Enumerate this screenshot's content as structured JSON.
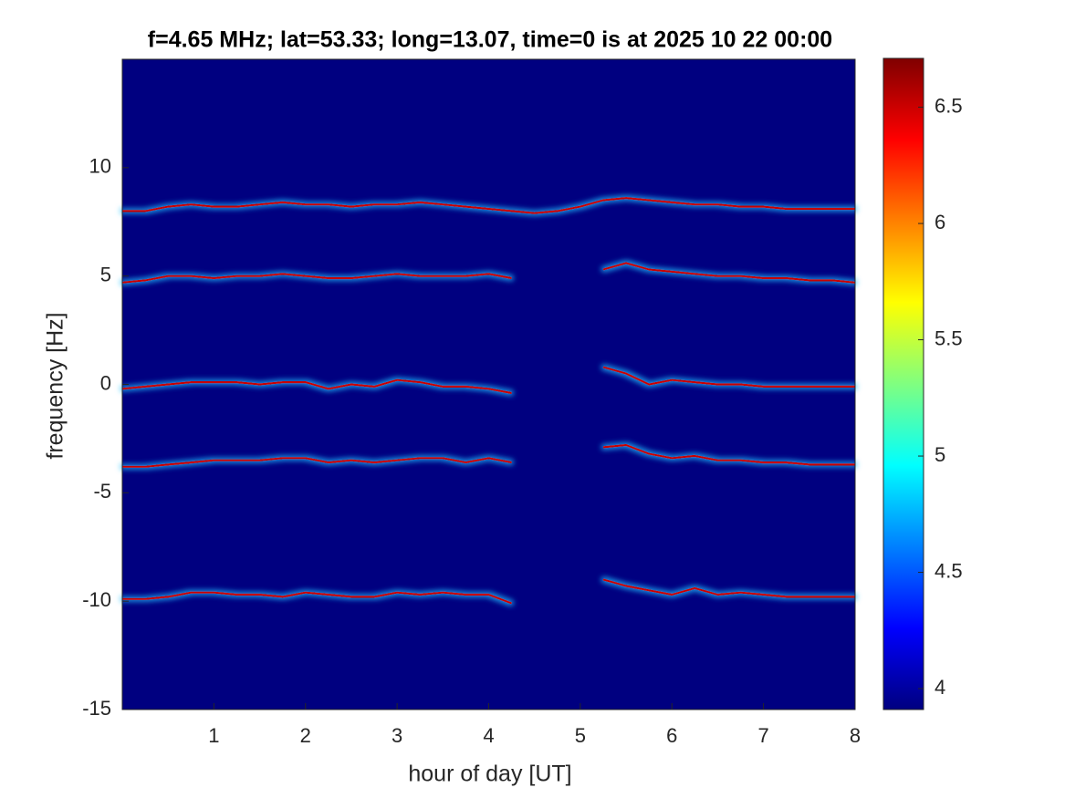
{
  "chart_data": {
    "type": "spectrogram",
    "title": "f=4.65 MHz;  lat=53.33; long=13.07, time=0 is at 2025 10 22 00:00",
    "xlabel": "hour of day [UT]",
    "ylabel": "frequency [Hz]",
    "colormap": "jet",
    "x": [
      0,
      0.25,
      0.5,
      0.75,
      1,
      1.25,
      1.5,
      1.75,
      2,
      2.25,
      2.5,
      2.75,
      3,
      3.25,
      3.5,
      3.75,
      4,
      4.25,
      4.5,
      4.75,
      5,
      5.25,
      5.5,
      5.75,
      6,
      6.25,
      6.5,
      6.75,
      7,
      7.25,
      7.5,
      7.75,
      8
    ],
    "series": [
      {
        "color": "#c80000",
        "values": [
          8.0,
          8.0,
          8.2,
          8.3,
          8.2,
          8.2,
          8.3,
          8.4,
          8.3,
          8.3,
          8.2,
          8.3,
          8.3,
          8.4,
          8.3,
          8.2,
          8.1,
          8.0,
          7.9,
          8.0,
          8.2,
          8.5,
          8.6,
          8.5,
          8.4,
          8.3,
          8.3,
          8.2,
          8.2,
          8.1,
          8.1,
          8.1,
          8.1
        ]
      },
      {
        "color": "#c80000",
        "values": [
          4.7,
          4.8,
          5.0,
          5.0,
          4.9,
          5.0,
          5.0,
          5.1,
          5.0,
          4.9,
          4.9,
          5.0,
          5.1,
          5.0,
          5.0,
          5.0,
          5.1,
          4.9,
          null,
          null,
          null,
          5.3,
          5.6,
          5.3,
          5.2,
          5.1,
          5.0,
          5.0,
          4.9,
          4.9,
          4.8,
          4.8,
          4.7
        ]
      },
      {
        "color": "#c80000",
        "values": [
          -0.2,
          -0.1,
          0,
          0.1,
          0.1,
          0.1,
          0,
          0.1,
          0.1,
          -0.2,
          0,
          -0.1,
          0.2,
          0.1,
          -0.1,
          -0.1,
          -0.2,
          -0.4,
          null,
          null,
          null,
          0.8,
          0.5,
          0,
          0.2,
          0.1,
          0,
          0,
          -0.1,
          -0.1,
          -0.1,
          -0.1,
          -0.1
        ]
      },
      {
        "color": "#c80000",
        "values": [
          -3.8,
          -3.8,
          -3.7,
          -3.6,
          -3.5,
          -3.5,
          -3.5,
          -3.4,
          -3.4,
          -3.6,
          -3.5,
          -3.6,
          -3.5,
          -3.4,
          -3.4,
          -3.6,
          -3.4,
          -3.6,
          null,
          null,
          null,
          -2.9,
          -2.8,
          -3.2,
          -3.4,
          -3.3,
          -3.5,
          -3.5,
          -3.6,
          -3.6,
          -3.7,
          -3.7,
          -3.7
        ]
      },
      {
        "color": "#c80000",
        "values": [
          -9.9,
          -9.9,
          -9.8,
          -9.6,
          -9.6,
          -9.7,
          -9.7,
          -9.8,
          -9.6,
          -9.7,
          -9.8,
          -9.8,
          -9.6,
          -9.7,
          -9.6,
          -9.7,
          -9.7,
          -10.1,
          null,
          null,
          null,
          -9.0,
          -9.3,
          -9.5,
          -9.7,
          -9.4,
          -9.7,
          -9.6,
          -9.7,
          -9.8,
          -9.8,
          -9.8,
          -9.8
        ]
      }
    ],
    "xlim": [
      0,
      8
    ],
    "ylim": [
      -15,
      15
    ],
    "xticks": [
      1,
      2,
      3,
      4,
      5,
      6,
      7,
      8
    ],
    "yticks": [
      -15,
      -10,
      -5,
      0,
      5,
      10
    ],
    "clim": [
      3.91,
      6.71
    ],
    "cticks": [
      4,
      4.5,
      5,
      5.5,
      6,
      6.5
    ]
  }
}
